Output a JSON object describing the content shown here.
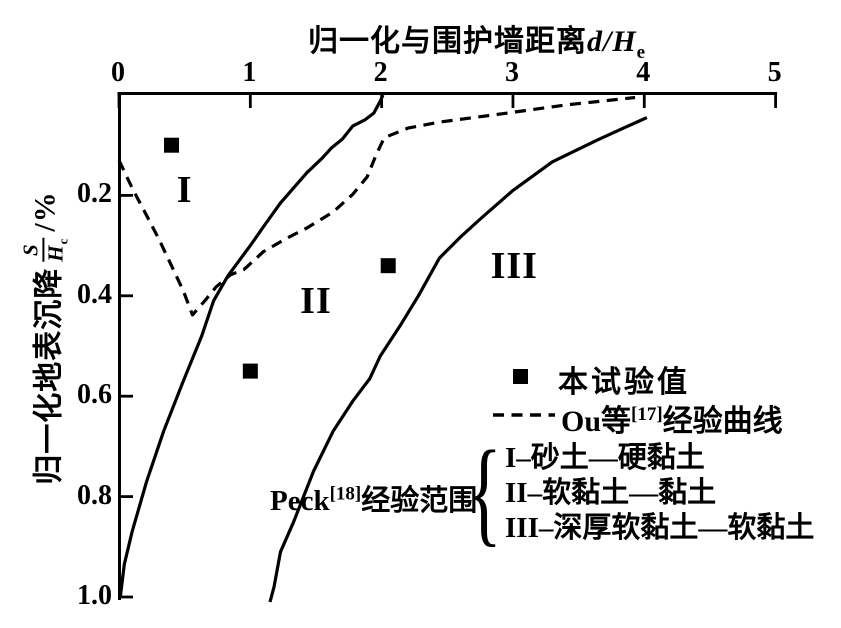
{
  "colors": {
    "ink": "#000000",
    "background": "#ffffff"
  },
  "chart_data": {
    "type": "line",
    "title": "",
    "xlabel_text": "归一化与围护墙距离",
    "xlabel_var": "d/H",
    "xlabel_sub": "e",
    "ylabel_text": "归一化地表沉降",
    "ylabel_frac_num": "S",
    "ylabel_frac_den": "H",
    "ylabel_frac_den_sub": "c",
    "ylabel_unit": "/%",
    "xlim": [
      0,
      5
    ],
    "ylim": [
      0,
      1.0
    ],
    "y_inverted": true,
    "grid": false,
    "x_axis_position": "top",
    "x_ticks": [
      0,
      1,
      2,
      3,
      4,
      5
    ],
    "x_tick_labels": [
      "0",
      "1",
      "2",
      "3",
      "4",
      "5"
    ],
    "y_ticks": [
      0.2,
      0.4,
      0.6,
      0.8,
      1.0
    ],
    "y_tick_labels": [
      "0.2",
      "0.4",
      "0.6",
      "0.8",
      "1.0"
    ],
    "series": [
      {
        "name": "Peck经验范围边界线-左(I/II分界)",
        "style": "solid",
        "points": [
          [
            0.01,
            1.0
          ],
          [
            0.04,
            0.935
          ],
          [
            0.1,
            0.87
          ],
          [
            0.21,
            0.77
          ],
          [
            0.34,
            0.67
          ],
          [
            0.49,
            0.57
          ],
          [
            0.63,
            0.48
          ],
          [
            0.72,
            0.41
          ],
          [
            0.83,
            0.36
          ],
          [
            1.0,
            0.3
          ],
          [
            1.12,
            0.255
          ],
          [
            1.23,
            0.215
          ],
          [
            1.43,
            0.155
          ],
          [
            1.55,
            0.125
          ],
          [
            1.62,
            0.105
          ],
          [
            1.7,
            0.088
          ],
          [
            1.78,
            0.062
          ],
          [
            1.87,
            0.05
          ],
          [
            1.94,
            0.036
          ],
          [
            1.99,
            0.012
          ],
          [
            2.01,
            0.0
          ]
        ]
      },
      {
        "name": "Peck经验范围边界线-右(III外边界)",
        "style": "solid",
        "points": [
          [
            1.15,
            1.01
          ],
          [
            1.18,
            0.98
          ],
          [
            1.23,
            0.91
          ],
          [
            1.33,
            0.85
          ],
          [
            1.48,
            0.75
          ],
          [
            1.63,
            0.67
          ],
          [
            1.78,
            0.61
          ],
          [
            1.91,
            0.565
          ],
          [
            1.99,
            0.52
          ],
          [
            2.14,
            0.46
          ],
          [
            2.28,
            0.4
          ],
          [
            2.44,
            0.325
          ],
          [
            2.6,
            0.283
          ],
          [
            2.76,
            0.245
          ],
          [
            3.0,
            0.19
          ],
          [
            3.3,
            0.133
          ],
          [
            3.64,
            0.09
          ],
          [
            3.85,
            0.065
          ],
          [
            4.02,
            0.045
          ]
        ]
      },
      {
        "name": "Ou等[17]经验曲线",
        "style": "dashed",
        "points": [
          [
            0.0,
            0.13
          ],
          [
            0.1,
            0.185
          ],
          [
            0.21,
            0.24
          ],
          [
            0.3,
            0.285
          ],
          [
            0.4,
            0.34
          ],
          [
            0.49,
            0.39
          ],
          [
            0.56,
            0.438
          ],
          [
            0.66,
            0.408
          ],
          [
            0.74,
            0.382
          ],
          [
            0.85,
            0.358
          ],
          [
            0.95,
            0.348
          ],
          [
            1.1,
            0.312
          ],
          [
            1.28,
            0.285
          ],
          [
            1.43,
            0.265
          ],
          [
            1.63,
            0.233
          ],
          [
            1.78,
            0.198
          ],
          [
            1.89,
            0.163
          ],
          [
            1.96,
            0.118
          ],
          [
            2.02,
            0.085
          ],
          [
            2.2,
            0.066
          ],
          [
            2.44,
            0.054
          ],
          [
            2.9,
            0.038
          ],
          [
            3.4,
            0.02
          ],
          [
            3.93,
            0.005
          ]
        ]
      }
    ],
    "scatter": {
      "name": "本试验值",
      "marker": "filled-square",
      "points": [
        [
          0.4,
          0.1
        ],
        [
          1.0,
          0.55
        ],
        [
          2.05,
          0.34
        ]
      ]
    },
    "zones": [
      {
        "label": "I",
        "x": 0.5,
        "y": 0.19
      },
      {
        "label": "II",
        "x": 1.5,
        "y": 0.41
      },
      {
        "label": "III",
        "x": 3.01,
        "y": 0.34
      }
    ]
  },
  "legend": {
    "experimental_label": "本试验值",
    "ou_prefix": "Ou等",
    "ou_sup": "[17]",
    "ou_suffix": "经验曲线",
    "peck_prefix": "Peck",
    "peck_sup": "[18]",
    "peck_suffix": "经验范围",
    "zone_brace": "{",
    "zone_items": [
      "I–砂土—硬黏土",
      "II–软黏土—黏土",
      "III–深厚软黏土—软黏土"
    ]
  }
}
